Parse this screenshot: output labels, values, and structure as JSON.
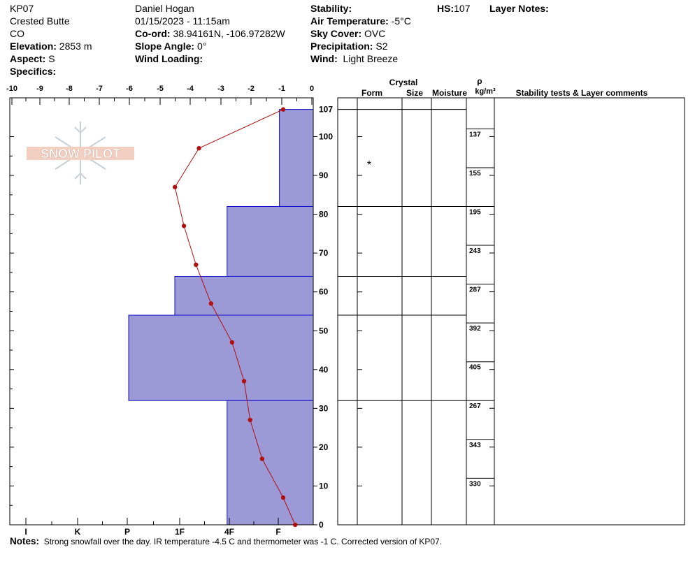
{
  "header": {
    "station": "KP07",
    "location": "Crested Butte",
    "state": "CO",
    "elevation_label": "Elevation:",
    "elevation": "2853 m",
    "aspect_label": "Aspect:",
    "aspect": "S",
    "specifics_label": "Specifics:",
    "observer": "Daniel Hogan",
    "datetime": "01/15/2023 - 11:15am",
    "coord_label": "Co-ord:",
    "coord": "38.94161N, -106.97282W",
    "slope_label": "Slope Angle:",
    "slope": "0°",
    "wind_loading_label": "Wind Loading:",
    "stability_label": "Stability:",
    "air_temp_label": "Air Temperature:",
    "air_temp": "-5°C",
    "sky_label": "Sky Cover:",
    "sky": "OVC",
    "precip_label": "Precipitation:",
    "precip": "S2",
    "wind_label": "Wind:",
    "wind": "Light Breeze",
    "hs_label": "HS:",
    "hs": "107",
    "layer_notes_label": "Layer Notes:"
  },
  "logo_text": "SNOW PILOT",
  "table_headers": {
    "crystal": "Crystal",
    "form": "Form",
    "size": "Size",
    "moisture": "Moisture",
    "rho": "ρ",
    "density_unit": "kg/m³",
    "comments": "Stability tests & Layer comments"
  },
  "chart_data": {
    "type": "snow-profile",
    "temperature_axis": {
      "ticks": [
        "-10",
        "-9",
        "-8",
        "-7",
        "-6",
        "-5",
        "-4",
        "-3",
        "-2",
        "-1",
        "0"
      ],
      "range": [
        -10,
        0
      ]
    },
    "hardness_axis": {
      "ticks": [
        "I",
        "K",
        "P",
        "1F",
        "4F",
        "F"
      ]
    },
    "height_axis": {
      "ticks": [
        0,
        10,
        20,
        30,
        40,
        50,
        60,
        70,
        80,
        90,
        100
      ],
      "top_label": "107",
      "range": [
        0,
        107
      ]
    },
    "hardness_layers": [
      {
        "bottom": 82,
        "top": 107,
        "hardness_value": 1.1
      },
      {
        "bottom": 64,
        "top": 82,
        "hardness_value": 2.8
      },
      {
        "bottom": 54,
        "top": 64,
        "hardness_value": 4.5
      },
      {
        "bottom": 32,
        "top": 54,
        "hardness_value": 6.0
      },
      {
        "bottom": 0,
        "top": 32,
        "hardness_value": 2.8
      }
    ],
    "temperature_profile": [
      {
        "height": 107,
        "temp": -1.0
      },
      {
        "height": 97,
        "temp": -3.8
      },
      {
        "height": 87,
        "temp": -4.6
      },
      {
        "height": 77,
        "temp": -4.3
      },
      {
        "height": 67,
        "temp": -3.9
      },
      {
        "height": 57,
        "temp": -3.4
      },
      {
        "height": 47,
        "temp": -2.7
      },
      {
        "height": 37,
        "temp": -2.3
      },
      {
        "height": 27,
        "temp": -2.1
      },
      {
        "height": 17,
        "temp": -1.7
      },
      {
        "height": 7,
        "temp": -1.0
      },
      {
        "height": 0,
        "temp": -0.6
      }
    ],
    "layer_boundaries": [
      107,
      82,
      64,
      54,
      32
    ],
    "crystal_symbols": [
      {
        "height": 94,
        "symbol": "*"
      }
    ],
    "densities": [
      {
        "height": 102,
        "value": "137"
      },
      {
        "height": 92,
        "value": "155"
      },
      {
        "height": 82,
        "value": "195"
      },
      {
        "height": 72,
        "value": "243"
      },
      {
        "height": 62,
        "value": "287"
      },
      {
        "height": 52,
        "value": "392"
      },
      {
        "height": 42,
        "value": "405"
      },
      {
        "height": 32,
        "value": "267"
      },
      {
        "height": 22,
        "value": "343"
      },
      {
        "height": 12,
        "value": "330"
      }
    ],
    "colors": {
      "hardness_fill": "#9c9ad6",
      "hardness_stroke": "#1010c8",
      "temp_line": "#b01010"
    }
  },
  "notes": {
    "label": "Notes:",
    "text": "Strong snowfall over the day. IR temperature -4.5 C and thermometer was -1 C. Corrected version of KP07."
  }
}
